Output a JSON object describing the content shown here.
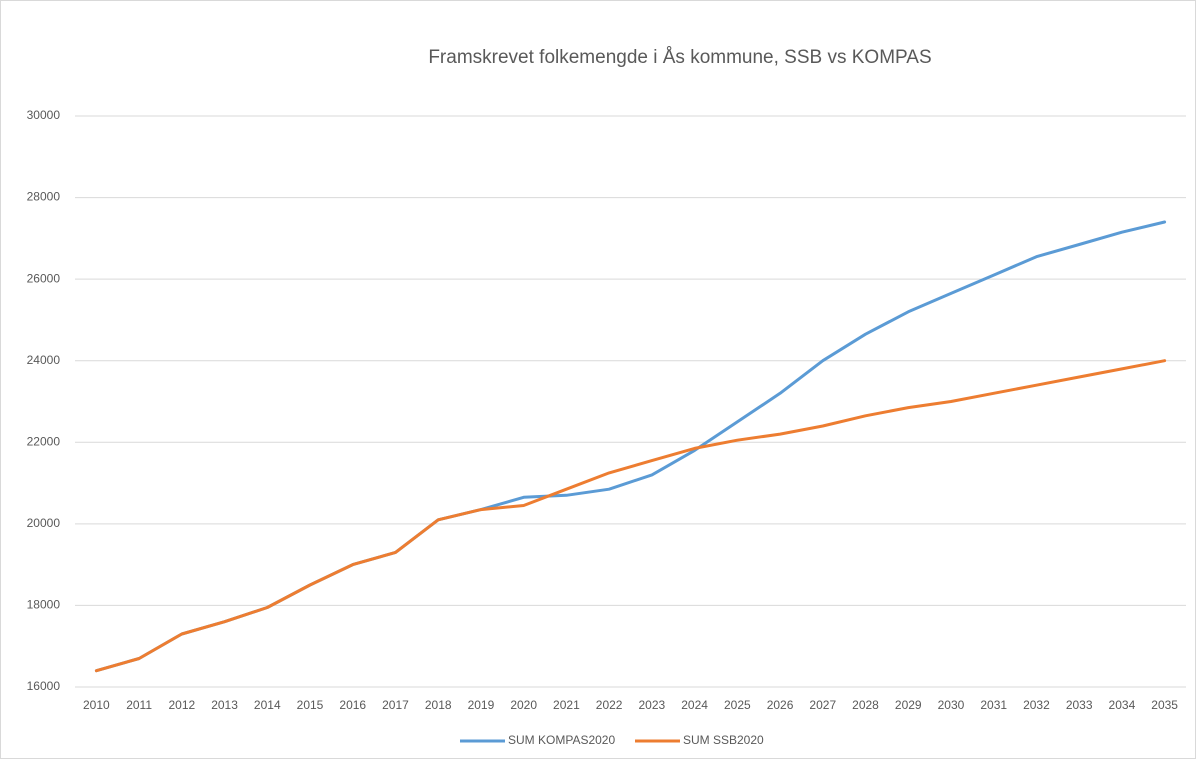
{
  "chart_data": {
    "type": "line",
    "title": "Framskrevet folkemengde i Ås kommune, SSB vs KOMPAS",
    "categories": [
      "2010",
      "2011",
      "2012",
      "2013",
      "2014",
      "2015",
      "2016",
      "2017",
      "2018",
      "2019",
      "2020",
      "2021",
      "2022",
      "2023",
      "2024",
      "2025",
      "2026",
      "2027",
      "2028",
      "2029",
      "2030",
      "2031",
      "2032",
      "2033",
      "2034",
      "2035"
    ],
    "series": [
      {
        "name": "SUM KOMPAS2020",
        "color": "#5b9bd5",
        "values": [
          16400,
          16700,
          17300,
          17600,
          17950,
          18500,
          19000,
          19300,
          20100,
          20350,
          20650,
          20700,
          20850,
          21200,
          21800,
          22500,
          23200,
          24000,
          24650,
          25200,
          25650,
          26100,
          26550,
          26850,
          27150,
          27400
        ]
      },
      {
        "name": "SUM SSB2020",
        "color": "#ed7d31",
        "values": [
          16400,
          16700,
          17300,
          17600,
          17950,
          18500,
          19000,
          19300,
          20100,
          20350,
          20450,
          20850,
          21250,
          21550,
          21850,
          22050,
          22200,
          22400,
          22650,
          22850,
          23000,
          23200,
          23400,
          23600,
          23800,
          24000
        ]
      }
    ],
    "ylim": [
      16000,
      30000
    ],
    "yticks": [
      16000,
      18000,
      20000,
      22000,
      24000,
      26000,
      28000,
      30000
    ],
    "grid": true,
    "legend": "bottom"
  }
}
